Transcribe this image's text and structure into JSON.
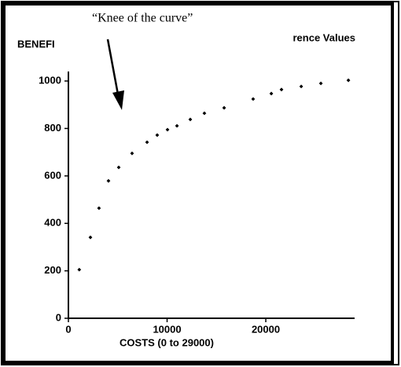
{
  "chart_data": {
    "type": "scatter",
    "title_parts": [
      "BENEFI",
      "rence Values"
    ],
    "annotation": "“Knee of the curve”",
    "x_label": "COSTS (0 to 29000)",
    "color": "#000000",
    "x": [
      1100,
      2230,
      3100,
      4060,
      5100,
      6450,
      7970,
      9000,
      10040,
      11000,
      12350,
      13780,
      15780,
      18720,
      20560,
      21590,
      23590,
      25580,
      28370
    ],
    "values": [
      205,
      341,
      464,
      579,
      636,
      695,
      742,
      772,
      795,
      811,
      838,
      864,
      887,
      924,
      947,
      964,
      977,
      990,
      1003
    ],
    "xlim": [
      0,
      29000
    ],
    "xticks": [
      0,
      10000,
      20000
    ],
    "ylim": [
      0,
      1040
    ],
    "yticks": [
      0,
      200,
      400,
      600,
      800,
      1000
    ]
  }
}
